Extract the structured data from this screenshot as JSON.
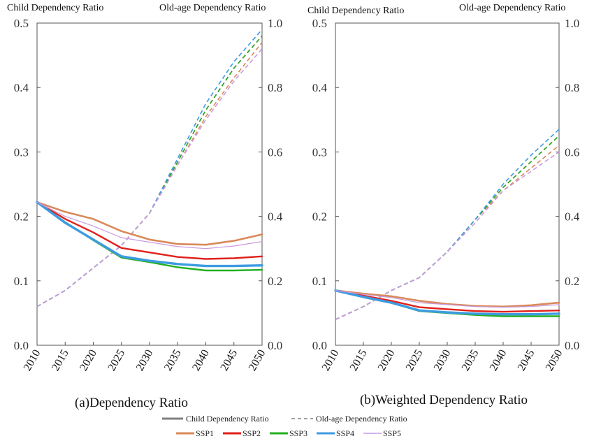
{
  "legend": {
    "child_label": "Child Dependency Ratio",
    "old_label": "Old-age Dependency Ratio",
    "series": [
      {
        "name": "SSP1",
        "color": "#d9895a"
      },
      {
        "name": "SSP2",
        "color": "#e0201c"
      },
      {
        "name": "SSP3",
        "color": "#22b022"
      },
      {
        "name": "SSP4",
        "color": "#3d9be0"
      },
      {
        "name": "SSP5",
        "color": "#c99ae0"
      }
    ]
  },
  "chart_data": [
    {
      "type": "line",
      "title": "(a)Dependency Ratio",
      "ylabel_left": "Child Dependency Ratio",
      "ylabel_right": "Old-age Dependency Ratio",
      "x": [
        2010,
        2015,
        2020,
        2025,
        2030,
        2035,
        2040,
        2045,
        2050
      ],
      "ylim_left": [
        0,
        0.5
      ],
      "ylim_right": [
        0,
        1.0
      ],
      "yticks_left": [
        "0.0",
        "0.1",
        "0.2",
        "0.3",
        "0.4",
        "0.5"
      ],
      "yticks_right": [
        "0.0",
        "0.2",
        "0.4",
        "0.6",
        "0.8",
        "1.0"
      ],
      "child_series": [
        {
          "name": "SSP1",
          "values": [
            0.222,
            0.207,
            0.196,
            0.177,
            0.164,
            0.157,
            0.156,
            0.162,
            0.172
          ]
        },
        {
          "name": "SSP2",
          "values": [
            0.222,
            0.196,
            0.175,
            0.151,
            0.144,
            0.137,
            0.134,
            0.135,
            0.138
          ]
        },
        {
          "name": "SSP3",
          "values": [
            0.222,
            0.191,
            0.163,
            0.136,
            0.129,
            0.121,
            0.116,
            0.116,
            0.117
          ]
        },
        {
          "name": "SSP4",
          "values": [
            0.222,
            0.19,
            0.164,
            0.138,
            0.131,
            0.126,
            0.123,
            0.123,
            0.124
          ]
        },
        {
          "name": "SSP5",
          "values": [
            0.222,
            0.2,
            0.185,
            0.167,
            0.16,
            0.153,
            0.15,
            0.154,
            0.161
          ]
        }
      ],
      "old_series": [
        {
          "name": "SSP1",
          "values": [
            0.12,
            0.17,
            0.24,
            0.31,
            0.41,
            0.56,
            0.71,
            0.83,
            0.94
          ]
        },
        {
          "name": "SSP2",
          "values": [
            0.12,
            0.17,
            0.24,
            0.31,
            0.41,
            0.57,
            0.73,
            0.86,
            0.96
          ]
        },
        {
          "name": "SSP3",
          "values": [
            0.12,
            0.17,
            0.24,
            0.31,
            0.41,
            0.57,
            0.73,
            0.86,
            0.96
          ]
        },
        {
          "name": "SSP4",
          "values": [
            0.12,
            0.17,
            0.24,
            0.31,
            0.41,
            0.58,
            0.75,
            0.88,
            0.98
          ]
        },
        {
          "name": "SSP5",
          "values": [
            0.12,
            0.17,
            0.24,
            0.31,
            0.41,
            0.56,
            0.7,
            0.82,
            0.92
          ]
        }
      ]
    },
    {
      "type": "line",
      "title": "(b)Weighted Dependency Ratio",
      "ylabel_left": "Child Dependency Ratio",
      "ylabel_right": "Old-age Dependency Ratio",
      "x": [
        2010,
        2015,
        2020,
        2025,
        2030,
        2035,
        2040,
        2045,
        2050
      ],
      "ylim_left": [
        0,
        0.5
      ],
      "ylim_right": [
        0,
        1.0
      ],
      "yticks_left": [
        "0.0",
        "0.1",
        "0.2",
        "0.3",
        "0.4",
        "0.5"
      ],
      "yticks_right": [
        "0.0",
        "0.2",
        "0.4",
        "0.6",
        "0.8",
        "1.0"
      ],
      "child_series": [
        {
          "name": "SSP1",
          "values": [
            0.085,
            0.08,
            0.076,
            0.069,
            0.064,
            0.061,
            0.06,
            0.062,
            0.066
          ]
        },
        {
          "name": "SSP2",
          "values": [
            0.085,
            0.077,
            0.069,
            0.059,
            0.056,
            0.053,
            0.052,
            0.053,
            0.054
          ]
        },
        {
          "name": "SSP3",
          "values": [
            0.085,
            0.075,
            0.066,
            0.053,
            0.05,
            0.047,
            0.045,
            0.045,
            0.045
          ]
        },
        {
          "name": "SSP4",
          "values": [
            0.085,
            0.075,
            0.066,
            0.054,
            0.051,
            0.049,
            0.048,
            0.048,
            0.049
          ]
        },
        {
          "name": "SSP5",
          "values": [
            0.085,
            0.079,
            0.074,
            0.066,
            0.063,
            0.06,
            0.059,
            0.06,
            0.063
          ]
        }
      ],
      "old_series": [
        {
          "name": "SSP1",
          "values": [
            0.08,
            0.12,
            0.17,
            0.21,
            0.29,
            0.39,
            0.48,
            0.55,
            0.62
          ]
        },
        {
          "name": "SSP2",
          "values": [
            0.08,
            0.12,
            0.17,
            0.21,
            0.29,
            0.39,
            0.49,
            0.57,
            0.65
          ]
        },
        {
          "name": "SSP3",
          "values": [
            0.08,
            0.12,
            0.17,
            0.21,
            0.29,
            0.39,
            0.49,
            0.57,
            0.65
          ]
        },
        {
          "name": "SSP4",
          "values": [
            0.08,
            0.12,
            0.17,
            0.21,
            0.29,
            0.39,
            0.5,
            0.59,
            0.67
          ]
        },
        {
          "name": "SSP5",
          "values": [
            0.08,
            0.12,
            0.17,
            0.21,
            0.29,
            0.38,
            0.48,
            0.54,
            0.6
          ]
        }
      ]
    }
  ]
}
